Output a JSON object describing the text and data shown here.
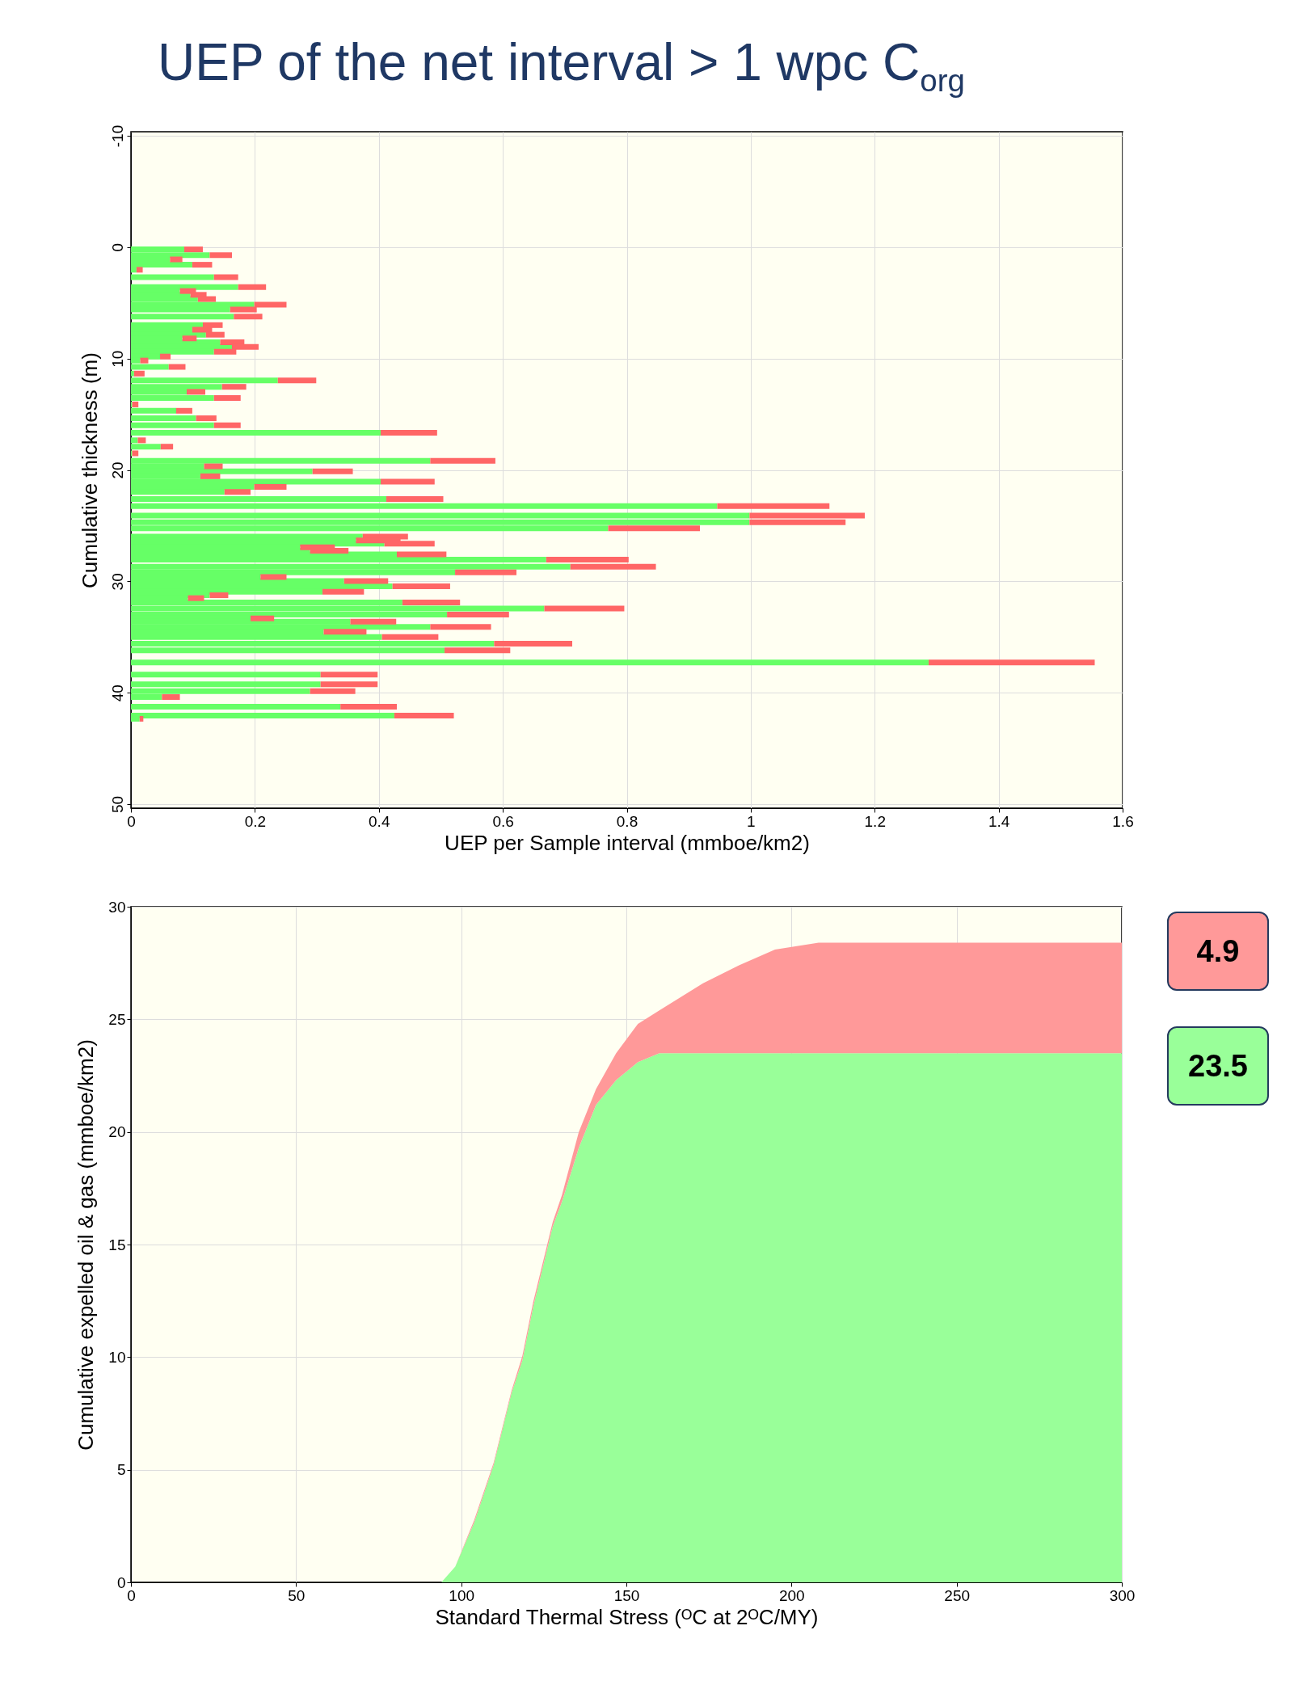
{
  "chart_data": [
    {
      "type": "bar",
      "title": "UEP of the net interval > 1 wpc C$_{org}$",
      "xlabel": "UEP per Sample interval (mmboe/km2)",
      "ylabel": "Cumulative thickness (m)",
      "orientation": "horizontal",
      "stacked": true,
      "grid": true,
      "xlim": [
        0,
        1.6
      ],
      "xticks": [
        0,
        0.2,
        0.4,
        0.6,
        0.8,
        1,
        1.2,
        1.4,
        1.6
      ],
      "ylim": [
        50,
        -10
      ],
      "yticks": [
        -10,
        0,
        10,
        20,
        30,
        40,
        50
      ],
      "x": [
        0.2,
        0.72,
        1.1,
        1.58,
        2.03,
        2.7,
        3.59,
        3.94,
        4.28,
        4.66,
        5.16,
        5.59,
        6.24,
        6.79,
        7.0,
        7.41,
        7.86,
        8.19,
        8.53,
        8.96,
        9.39,
        9.82,
        10.18,
        10.75,
        11.35,
        11.97,
        12.54,
        12.99,
        13.54,
        14.12,
        14.69,
        15.36,
        16.0,
        16.67,
        17.34,
        17.91,
        18.51,
        19.18,
        19.68,
        20.12,
        20.57,
        21.05,
        21.53,
        21.98,
        22.62,
        23.24,
        24.1,
        24.7,
        25.24,
        25.98,
        26.33,
        26.62,
        26.94,
        27.26,
        27.58,
        28.05,
        28.69,
        29.2,
        29.62,
        29.97,
        30.45,
        30.93,
        31.25,
        31.51,
        31.89,
        32.44,
        32.98,
        33.33,
        33.62,
        34.1,
        34.52,
        35.0,
        35.6,
        36.2,
        37.28,
        38.37,
        39.24,
        39.87,
        40.39,
        41.25,
        42.05,
        42.34
      ],
      "series": [
        {
          "color": "#66ff66",
          "values": [
            0.086,
            0.127,
            0.063,
            0.099,
            0.009,
            0.134,
            0.173,
            0.079,
            0.096,
            0.108,
            0.199,
            0.16,
            0.166,
            null,
            0.116,
            0.099,
            0.121,
            0.083,
            0.144,
            0.163,
            0.134,
            0.047,
            0.015,
            0.061,
            0.005,
            0.237,
            0.147,
            0.09,
            0.134,
            0.002,
            0.073,
            0.105,
            0.134,
            0.403,
            0.011,
            0.048,
            0.002,
            0.483,
            0.118,
            0.293,
            0.112,
            0.403,
            0.199,
            0.151,
            0.412,
            0.946,
            0.998,
            0.998,
            0.77,
            0.374,
            0.363,
            0.409,
            0.273,
            0.289,
            0.429,
            0.67,
            0.709,
            0.523,
            0.209,
            0.344,
            0.422,
            0.309,
            0.127,
            0.092,
            0.438,
            0.667,
            0.51,
            0.193,
            0.354,
            0.483,
            0.311,
            0.405,
            0.586,
            0.506,
            1.287,
            0.306,
            0.306,
            0.289,
            0.05,
            0.338,
            0.425,
            0.014
          ]
        },
        {
          "color": "#ff6666",
          "values": [
            0.03,
            0.036,
            0.02,
            0.032,
            0.01,
            0.039,
            0.045,
            0.026,
            0.026,
            0.029,
            0.052,
            0.043,
            0.046,
            null,
            0.032,
            0.032,
            0.03,
            0.023,
            0.039,
            0.043,
            0.036,
            0.017,
            0.013,
            0.027,
            0.017,
            0.062,
            0.039,
            0.03,
            0.043,
            0.01,
            0.026,
            0.033,
            0.043,
            0.091,
            0.013,
            0.02,
            0.01,
            0.105,
            0.03,
            0.065,
            0.032,
            0.087,
            0.052,
            0.042,
            0.092,
            0.181,
            0.186,
            0.155,
            0.148,
            0.073,
            0.072,
            0.081,
            0.056,
            0.062,
            0.08,
            0.133,
            0.138,
            0.099,
            0.042,
            0.071,
            0.093,
            0.067,
            0.03,
            0.026,
            0.093,
            0.129,
            0.1,
            0.038,
            0.074,
            0.098,
            0.069,
            0.091,
            0.126,
            0.106,
            0.268,
            0.092,
            0.092,
            0.073,
            0.029,
            0.091,
            0.096,
            0.006
          ]
        }
      ]
    },
    {
      "type": "area",
      "stacked": true,
      "grid": true,
      "xlabel": "Standard Thermal Stress (ᴼC at 2ᴼC/MY)",
      "ylabel": "Cumulative expelled oil & gas (mmboe/km2)",
      "xlim": [
        0,
        300
      ],
      "xticks": [
        0,
        50,
        100,
        150,
        200,
        250,
        300
      ],
      "ylim": [
        0,
        30
      ],
      "yticks": [
        0,
        5,
        10,
        15,
        20,
        25,
        30
      ],
      "x": [
        94,
        98.2,
        103.9,
        109.8,
        115.2,
        118.5,
        121.8,
        127.7,
        130.5,
        135.6,
        140.8,
        146.9,
        153.5,
        160,
        173.2,
        184.1,
        195,
        208.2,
        230,
        300
      ],
      "series": [
        {
          "color": "#99ff99",
          "values": [
            0,
            0.7,
            2.65,
            5.2,
            8.4,
            9.85,
            12.25,
            15.8,
            16.9,
            19.3,
            21.2,
            22.3,
            23.1,
            23.5,
            23.5,
            23.5,
            23.5,
            23.5,
            23.5,
            23.5
          ]
        },
        {
          "color": "#ff9999",
          "values": [
            0,
            0,
            0.1,
            0.1,
            0.1,
            0.2,
            0.2,
            0.2,
            0.3,
            0.7,
            0.7,
            1.2,
            1.7,
            1.9,
            3.1,
            3.9,
            4.6,
            4.9,
            4.9,
            4.9
          ]
        }
      ],
      "annotations": [
        "4.9",
        "23.5"
      ]
    }
  ]
}
